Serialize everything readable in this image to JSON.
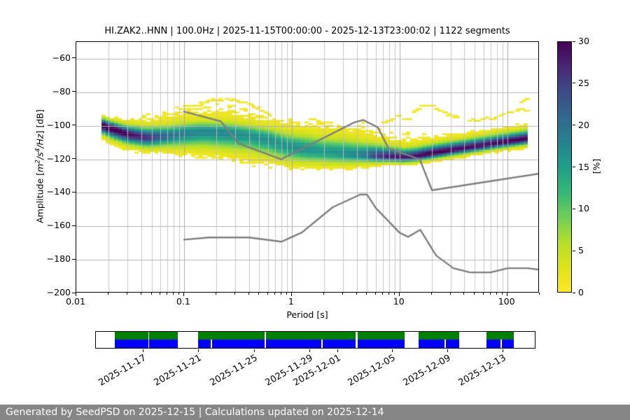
{
  "title": "HI.ZAK2..HNN | 100.0Hz | 2025-11-15T00:00:00 - 2025-12-13T23:00:02 | 1122 segments",
  "axes": {
    "xlabel": "Period [s]",
    "ylabel": {
      "pre": "Amplitude [",
      "m": "m",
      "sup2": "2",
      "s": "/s",
      "sup4": "4",
      "hz": "/Hz",
      "post": "] [dB]"
    },
    "xticks": [
      {
        "label": "0.01",
        "v": 0.01
      },
      {
        "label": "0.1",
        "v": 0.1
      },
      {
        "label": "1",
        "v": 1
      },
      {
        "label": "10",
        "v": 10
      },
      {
        "label": "100",
        "v": 100
      }
    ],
    "yticks": [
      {
        "label": "−60",
        "v": -60
      },
      {
        "label": "−80",
        "v": -80
      },
      {
        "label": "−100",
        "v": -100
      },
      {
        "label": "−120",
        "v": -120
      },
      {
        "label": "−140",
        "v": -140
      },
      {
        "label": "−160",
        "v": -160
      },
      {
        "label": "−180",
        "v": -180
      },
      {
        "label": "−200",
        "v": -200
      }
    ]
  },
  "colorbar": {
    "label": "[%]",
    "ticks": [
      {
        "label": "0",
        "v": 0
      },
      {
        "label": "5",
        "v": 5
      },
      {
        "label": "10",
        "v": 10
      },
      {
        "label": "15",
        "v": 15
      },
      {
        "label": "20",
        "v": 20
      },
      {
        "label": "25",
        "v": 25
      },
      {
        "label": "30",
        "v": 30
      }
    ]
  },
  "chart_data": {
    "type": "heatmap",
    "title": "HI.ZAK2..HNN | 100.0Hz | 2025-11-15T00:00:00 - 2025-12-13T23:00:02 | 1122 segments",
    "xlabel": "Period [s]",
    "ylabel": "Amplitude [m^2/s^4/Hz] [dB]",
    "xscale": "log",
    "xlim": [
      0.01,
      200
    ],
    "ylim": [
      -200,
      -50
    ],
    "grid": true,
    "colorbar": {
      "label": "[%]",
      "range": [
        0,
        30
      ],
      "colormap": "viridis_r"
    },
    "colormap": {
      "stops": [
        [
          0.0,
          "#440154"
        ],
        [
          0.1,
          "#482878"
        ],
        [
          0.2,
          "#3e4a89"
        ],
        [
          0.3,
          "#31688e"
        ],
        [
          0.4,
          "#26828e"
        ],
        [
          0.5,
          "#1f9e89"
        ],
        [
          0.6,
          "#35b779"
        ],
        [
          0.7,
          "#6ece58"
        ],
        [
          0.8,
          "#b5de2b"
        ],
        [
          0.9,
          "#dde318"
        ],
        [
          1.0,
          "#fde725"
        ]
      ]
    },
    "pmin": 0.018,
    "pmax": 160,
    "ridge_comment": "PPSD probability mode vs period: [period_s, mode_dB, peak_pct, sigma_up_dB, sigma_dn_dB, halo_up_dB, halo_dn_dB]",
    "ridge": [
      [
        0.018,
        -100,
        30,
        2.5,
        3,
        5,
        9
      ],
      [
        0.022,
        -102,
        30,
        2.5,
        3.5,
        7,
        9
      ],
      [
        0.03,
        -105,
        27,
        3,
        3.5,
        11,
        9
      ],
      [
        0.045,
        -107,
        24,
        3.5,
        3.5,
        14,
        9
      ],
      [
        0.07,
        -106,
        18,
        3.5,
        4,
        17,
        10
      ],
      [
        0.1,
        -104.5,
        16,
        3.5,
        5,
        18.5,
        13
      ],
      [
        0.15,
        -103.5,
        15,
        3.5,
        5.5,
        19,
        16
      ],
      [
        0.25,
        -104,
        15,
        3.5,
        6,
        19.5,
        18
      ],
      [
        0.4,
        -105.5,
        14,
        3.5,
        6,
        17,
        17
      ],
      [
        0.6,
        -108,
        14,
        4,
        6,
        16,
        15
      ],
      [
        0.9,
        -112,
        14,
        4.5,
        5.5,
        18,
        12
      ],
      [
        1.3,
        -114,
        14,
        5,
        5,
        20,
        10
      ],
      [
        2,
        -115.5,
        13,
        5,
        4.5,
        21,
        9
      ],
      [
        3,
        -116.5,
        14,
        5,
        4,
        21,
        7.5
      ],
      [
        4.5,
        -117.5,
        16,
        4.5,
        3,
        21,
        6
      ],
      [
        6,
        -118,
        22,
        4,
        2.5,
        19,
        5
      ],
      [
        8,
        -118.5,
        26,
        3.5,
        2,
        17,
        4
      ],
      [
        11,
        -118.8,
        26,
        3,
        2,
        16,
        3.5
      ],
      [
        14,
        -118.3,
        27,
        3,
        2,
        15,
        3.5
      ],
      [
        18,
        -117,
        28,
        3,
        2,
        14,
        4
      ],
      [
        25,
        -115.5,
        28,
        3,
        2,
        13,
        4.5
      ],
      [
        35,
        -114,
        27,
        3,
        2,
        11,
        5
      ],
      [
        50,
        -112.5,
        27,
        3,
        2,
        11,
        5
      ],
      [
        70,
        -111,
        27,
        3,
        2,
        10,
        5
      ],
      [
        100,
        -109.5,
        28,
        3,
        2,
        9.5,
        5.5
      ],
      [
        130,
        -108.5,
        28,
        3,
        2,
        9.5,
        5.5
      ],
      [
        165,
        -107.5,
        28,
        3,
        2,
        9.5,
        6
      ]
    ],
    "outlier_arcs": [
      [
        [
          0.12,
          -89
        ],
        [
          0.17,
          -85.5
        ],
        [
          0.25,
          -84.5
        ],
        [
          0.35,
          -86
        ],
        [
          0.5,
          -90
        ],
        [
          0.65,
          -94
        ]
      ],
      [
        [
          7,
          -99
        ],
        [
          10,
          -94.5
        ],
        [
          13,
          -96.5
        ]
      ],
      [
        [
          13.5,
          -92
        ],
        [
          17,
          -87.5
        ],
        [
          21,
          -89
        ],
        [
          27,
          -93
        ],
        [
          36,
          -95.5
        ]
      ],
      [
        [
          45,
          -97
        ],
        [
          70,
          -96
        ],
        [
          100,
          -92.5
        ],
        [
          130,
          -90
        ],
        [
          160,
          -91.5
        ]
      ],
      [
        [
          135,
          -86
        ],
        [
          150,
          -84.5
        ],
        [
          160,
          -85
        ]
      ]
    ],
    "noise_models": {
      "color": "#7d7d7d",
      "nhnm": [
        [
          0.1,
          -91.5
        ],
        [
          0.22,
          -97.4
        ],
        [
          0.32,
          -110.5
        ],
        [
          0.8,
          -120
        ],
        [
          3.8,
          -98
        ],
        [
          4.6,
          -96.5
        ],
        [
          6.3,
          -101
        ],
        [
          7.9,
          -113.5
        ],
        [
          15.4,
          -120
        ],
        [
          20,
          -138.5
        ],
        [
          200,
          -128.5
        ]
      ],
      "nlnm": [
        [
          0.1,
          -168
        ],
        [
          0.17,
          -166.7
        ],
        [
          0.4,
          -166.7
        ],
        [
          0.8,
          -169.2
        ],
        [
          1.24,
          -163.7
        ],
        [
          2.4,
          -148.6
        ],
        [
          4.3,
          -141.1
        ],
        [
          5,
          -141.1
        ],
        [
          6,
          -149
        ],
        [
          10,
          -163.8
        ],
        [
          12,
          -166.3
        ],
        [
          15.6,
          -162.1
        ],
        [
          21.9,
          -177.5
        ],
        [
          31.6,
          -185
        ],
        [
          45,
          -187.5
        ],
        [
          70,
          -187.5
        ],
        [
          101,
          -185
        ],
        [
          154,
          -185
        ],
        [
          200,
          -185.9
        ]
      ]
    }
  },
  "timeline": {
    "colors": {
      "green": "#008000",
      "blue": "#0000ff"
    },
    "green_segments": [
      [
        0.0429,
        0.1192
      ],
      [
        0.1208,
        0.186
      ],
      [
        0.2321,
        0.3848
      ],
      [
        0.388,
        0.5914
      ],
      [
        0.5962,
        0.7027
      ],
      [
        0.7345,
        0.8283
      ],
      [
        0.8903,
        0.9523
      ]
    ],
    "blue_segments": [
      [
        0.0429,
        0.1192
      ],
      [
        0.1208,
        0.186
      ],
      [
        0.2321,
        0.2623
      ],
      [
        0.2655,
        0.3848
      ],
      [
        0.388,
        0.5135
      ],
      [
        0.5167,
        0.5914
      ],
      [
        0.5962,
        0.7027
      ],
      [
        0.7345,
        0.7949
      ],
      [
        0.7981,
        0.8283
      ],
      [
        0.8903,
        0.9221
      ],
      [
        0.9253,
        0.9523
      ]
    ],
    "ticks": [
      {
        "label": "2025-11-17",
        "f": 0.1075
      },
      {
        "label": "2025-11-21",
        "f": 0.2321
      },
      {
        "label": "2025-11-25",
        "f": 0.3609
      },
      {
        "label": "2025-11-29",
        "f": 0.486
      },
      {
        "label": "2025-12-01",
        "f": 0.5496
      },
      {
        "label": "2025-12-05",
        "f": 0.6741
      },
      {
        "label": "2025-12-09",
        "f": 0.8002
      },
      {
        "label": "2025-12-13",
        "f": 0.9273
      }
    ]
  },
  "footer": {
    "text": "Generated by SeedPSD on 2025-12-15 | Calculations updated on 2025-12-14"
  }
}
